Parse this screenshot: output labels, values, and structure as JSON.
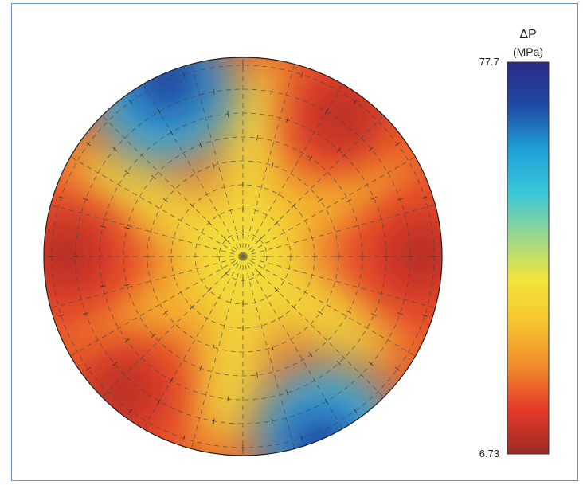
{
  "chart_data": {
    "type": "heatmap",
    "title": "",
    "colorbar": {
      "label_symbol": "ΔP",
      "label_unit": "(MPa)",
      "max": 77.7,
      "min": 6.73,
      "max_label": "77.7",
      "min_label": "6.73",
      "colormap": "jet_reversed",
      "colors": [
        "#2a2a86",
        "#1f4aa6",
        "#1f9fd6",
        "#37c7d9",
        "#9ad88c",
        "#f2e53a",
        "#f6c32f",
        "#f08a2a",
        "#e6382a",
        "#9b2b24"
      ]
    },
    "field": {
      "shape": "circular",
      "symmetry": "six-fold",
      "center_value": 28,
      "minima_directions": [
        "top-right",
        "right",
        "bottom-left",
        "left"
      ],
      "maxima_directions": [
        "top-left",
        "bottom-right"
      ],
      "overlay": "polar dashed grid with vector ticks"
    }
  }
}
